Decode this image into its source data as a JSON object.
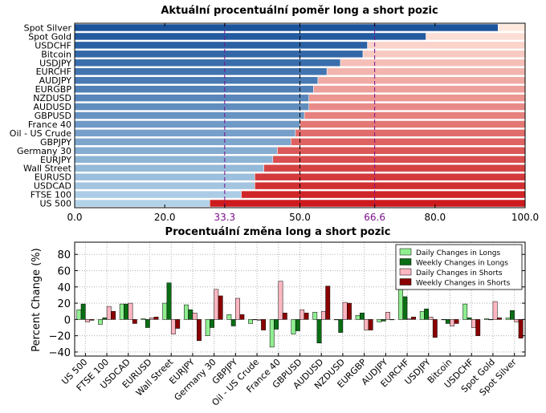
{
  "chart_data": [
    {
      "type": "bar",
      "orientation": "horizontal",
      "stacked": true,
      "title": "Aktuální procentuální poměr long a short pozic",
      "categories": [
        "Spot Silver",
        "Spot Gold",
        "USDCHF",
        "Bitcoin",
        "USDJPY",
        "EURCHF",
        "AUDJPY",
        "EURGBP",
        "NZDUSD",
        "AUDUSD",
        "GBPUSD",
        "France 40",
        "Oil - US Crude",
        "GBPJPY",
        "Germany 30",
        "EURJPY",
        "Wall Street",
        "EURUSD",
        "USDCAD",
        "FTSE 100",
        "US 500"
      ],
      "series": [
        {
          "name": "Long",
          "values": [
            94,
            78,
            65,
            64,
            59,
            56,
            54,
            53,
            52,
            52,
            51,
            50,
            49,
            48,
            45,
            44,
            42,
            40,
            40,
            37,
            30
          ]
        },
        {
          "name": "Short",
          "values": [
            6,
            22,
            35,
            36,
            41,
            44,
            46,
            47,
            48,
            48,
            49,
            50,
            51,
            52,
            55,
            56,
            58,
            60,
            60,
            63,
            70
          ]
        }
      ],
      "xlim": [
        0,
        100
      ],
      "xticks": [
        "0.0",
        "20.0",
        "33.3",
        "50.0",
        "66.6",
        "80.0",
        "100.0"
      ],
      "reference_lines": [
        33.3,
        50.0,
        66.6
      ],
      "reference_color": "#7a0f8a",
      "grid": false
    },
    {
      "type": "bar",
      "title": "Procentuální změna long a short pozic",
      "ylabel": "Percent Change (%)",
      "ylim": [
        -45,
        95
      ],
      "yticks": [
        "80",
        "60",
        "40",
        "20",
        "0",
        "−20",
        "−40"
      ],
      "grid": true,
      "legend_position": "top-right",
      "categories": [
        "US 500",
        "FTSE 100",
        "USDCAD",
        "EURUSD",
        "Wall Street",
        "EURJPY",
        "Germany 30",
        "GBPJPY",
        "Oil - US Crude",
        "France 40",
        "GBPUSD",
        "AUDUSD",
        "NZDUSD",
        "EURGBP",
        "AUDJPY",
        "EURCHF",
        "USDJPY",
        "Bitcoin",
        "USDCHF",
        "Spot Gold",
        "Spot Silver"
      ],
      "series": [
        {
          "name": "Daily Changes in Longs",
          "color": "#90ee90",
          "values": [
            12,
            -6,
            19,
            1,
            20,
            18,
            -20,
            6,
            -5,
            -34,
            -18,
            9,
            0,
            5,
            -3,
            45,
            10,
            0,
            19,
            1,
            2
          ]
        },
        {
          "name": "Weekly Changes in Longs",
          "color": "#0a6e14",
          "values": [
            19,
            2,
            19,
            -10,
            45,
            12,
            -10,
            -8,
            0,
            -12,
            -14,
            -29,
            -16,
            8,
            -2,
            28,
            13,
            -5,
            2,
            0,
            11
          ]
        },
        {
          "name": "Daily Changes in Shorts",
          "color": "#ffb6c1",
          "values": [
            -3,
            16,
            20,
            2,
            -18,
            8,
            37,
            26,
            -1,
            47,
            12,
            10,
            21,
            -13,
            9,
            1,
            3,
            -8,
            -10,
            22,
            -3
          ]
        },
        {
          "name": "Weekly Changes in Shorts",
          "color": "#8b0000",
          "values": [
            -1,
            10,
            -5,
            3,
            -11,
            -26,
            29,
            6,
            -13,
            8,
            8,
            41,
            20,
            -13,
            0,
            3,
            -22,
            -5,
            -20,
            2,
            -23
          ]
        }
      ]
    }
  ]
}
